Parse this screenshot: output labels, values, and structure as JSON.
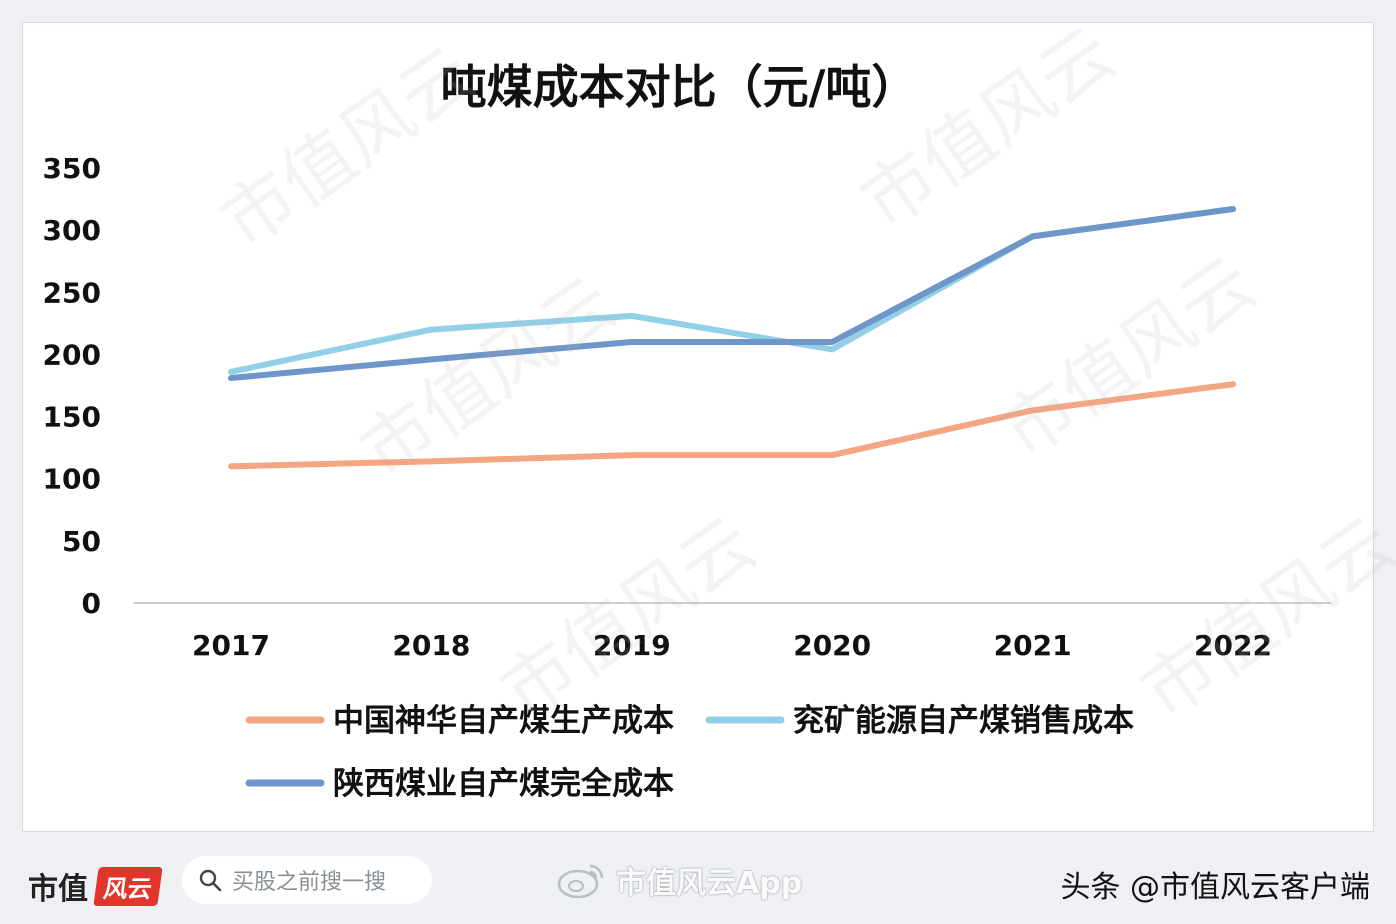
{
  "chart_data": {
    "type": "line",
    "title": "吨煤成本对比（元/吨）",
    "xlabel": "",
    "ylabel": "",
    "categories": [
      "2017",
      "2018",
      "2019",
      "2020",
      "2021",
      "2022"
    ],
    "ylim": [
      0,
      350
    ],
    "yticks": [
      "0",
      "50",
      "100",
      "150",
      "200",
      "250",
      "300",
      "350"
    ],
    "series": [
      {
        "name": "中国神华自产煤生产成本",
        "color": "#f4a582",
        "values": [
          110,
          114,
          119,
          119,
          155,
          176
        ]
      },
      {
        "name": "兖矿能源自产煤销售成本",
        "color": "#92d0e8",
        "values": [
          186,
          220,
          231,
          204,
          295,
          317
        ]
      },
      {
        "name": "陕西煤业自产煤完全成本",
        "color": "#6f96c8",
        "values": [
          181,
          196,
          210,
          210,
          295,
          317
        ]
      }
    ],
    "legend_position": "bottom",
    "grid": false
  },
  "footer": {
    "brand": "市值",
    "brand_mark": "风云",
    "search_placeholder": "买股之前搜一搜",
    "weibo_text": "市值风云App",
    "credit": "头条 @市值风云客户端"
  },
  "watermark": "市值风云"
}
